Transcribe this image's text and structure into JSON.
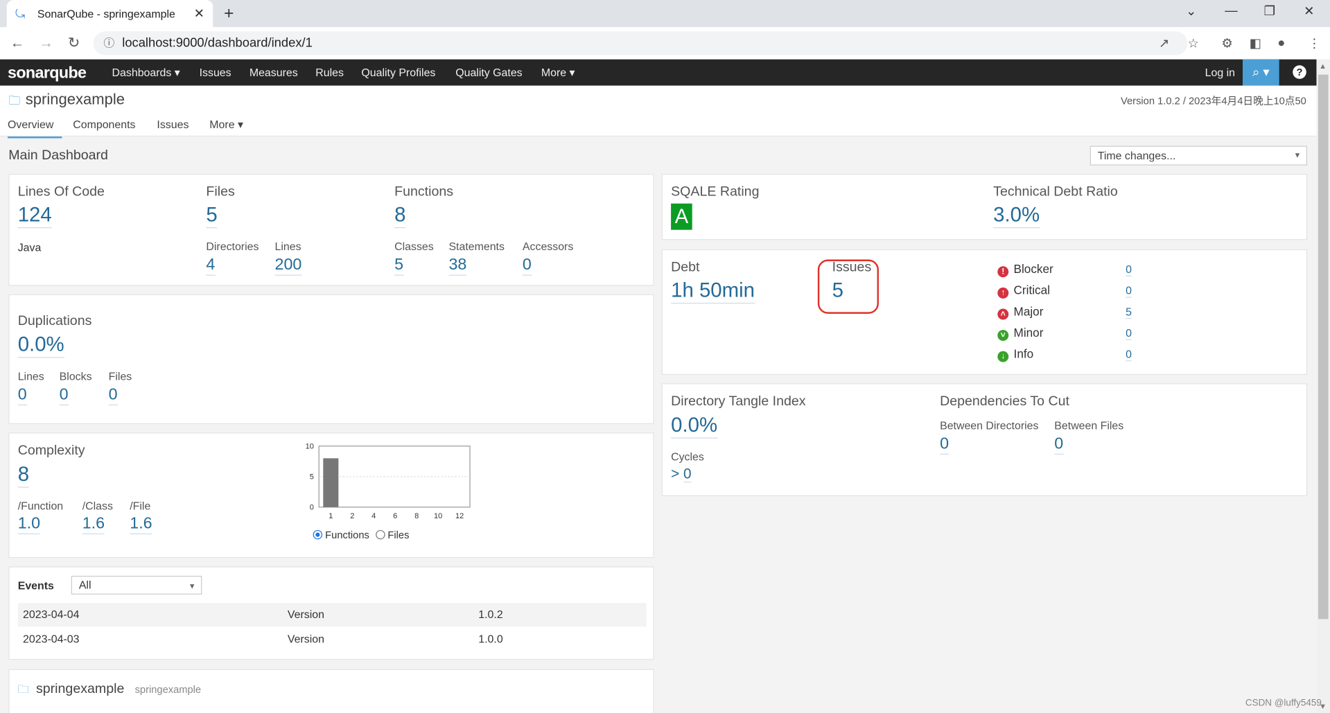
{
  "browser": {
    "tab_title": "SonarQube - springexample",
    "url": "localhost:9000/dashboard/index/1"
  },
  "nav": {
    "logo_text": "sonarqube",
    "items": [
      "Dashboards ▾",
      "Issues",
      "Measures",
      "Rules",
      "Quality Profiles",
      "Quality Gates",
      "More ▾"
    ],
    "login": "Log in",
    "search_icon": "⌕ ▾",
    "help_icon": "?"
  },
  "project": {
    "name": "springexample",
    "version": "Version 1.0.2 / 2023年4月4日晚上10点50",
    "tabs": [
      "Overview",
      "Components",
      "Issues",
      "More ▾"
    ]
  },
  "dashboard": {
    "title": "Main Dashboard",
    "time_changes": "Time changes..."
  },
  "size": {
    "loc_label": "Lines Of Code",
    "loc": "124",
    "language": "Java",
    "files_label": "Files",
    "files": "5",
    "functions_label": "Functions",
    "functions": "8",
    "directories_label": "Directories",
    "directories": "4",
    "lines_label": "Lines",
    "lines": "200",
    "classes_label": "Classes",
    "classes": "5",
    "statements_label": "Statements",
    "statements": "38",
    "accessors_label": "Accessors",
    "accessors": "0"
  },
  "duplications": {
    "label": "Duplications",
    "value": "0.0%",
    "lines_label": "Lines",
    "lines": "0",
    "blocks_label": "Blocks",
    "blocks": "0",
    "files_label": "Files",
    "files": "0"
  },
  "complexity": {
    "label": "Complexity",
    "value": "8",
    "per_function_label": "/Function",
    "per_function": "1.0",
    "per_class_label": "/Class",
    "per_class": "1.6",
    "per_file_label": "/File",
    "per_file": "1.6",
    "radio_functions": "Functions",
    "radio_files": "Files"
  },
  "chart_data": {
    "type": "bar",
    "categories": [
      "1",
      "2",
      "4",
      "6",
      "8",
      "10",
      "12"
    ],
    "values": [
      8,
      0,
      0,
      0,
      0,
      0,
      0
    ],
    "ylim": [
      0,
      10
    ],
    "yticks": [
      "10",
      "5",
      "0"
    ],
    "title": "",
    "xlabel": "",
    "ylabel": ""
  },
  "events": {
    "label": "Events",
    "filter": "All",
    "rows": [
      {
        "date": "2023-04-04",
        "category": "Version",
        "name": "1.0.2"
      },
      {
        "date": "2023-04-03",
        "category": "Version",
        "name": "1.0.0"
      }
    ]
  },
  "bottom_project": {
    "name": "springexample",
    "key": "springexample"
  },
  "sqale": {
    "rating_label": "SQALE Rating",
    "rating": "A",
    "debt_ratio_label": "Technical Debt Ratio",
    "debt_ratio": "3.0%"
  },
  "issues": {
    "debt_label": "Debt",
    "debt": "1h 50min",
    "issues_label": "Issues",
    "issues": "5",
    "severities": [
      {
        "name": "Blocker",
        "count": "0",
        "color": "#d4333f",
        "icon": "!"
      },
      {
        "name": "Critical",
        "count": "0",
        "color": "#d4333f",
        "icon": "↑"
      },
      {
        "name": "Major",
        "count": "5",
        "color": "#d4333f",
        "icon": "⌃"
      },
      {
        "name": "Minor",
        "count": "0",
        "color": "#3aa12b",
        "icon": "⌄"
      },
      {
        "name": "Info",
        "count": "0",
        "color": "#3aa12b",
        "icon": "↓"
      }
    ]
  },
  "design": {
    "dti_label": "Directory Tangle Index",
    "dti": "0.0%",
    "cycles_label": "Cycles",
    "cycles": "0",
    "cycles_prefix": ">",
    "deps_label": "Dependencies To Cut",
    "between_dirs_label": "Between Directories",
    "between_dirs": "0",
    "between_files_label": "Between Files",
    "between_files": "0"
  },
  "watermark": "CSDN @luffy5459"
}
